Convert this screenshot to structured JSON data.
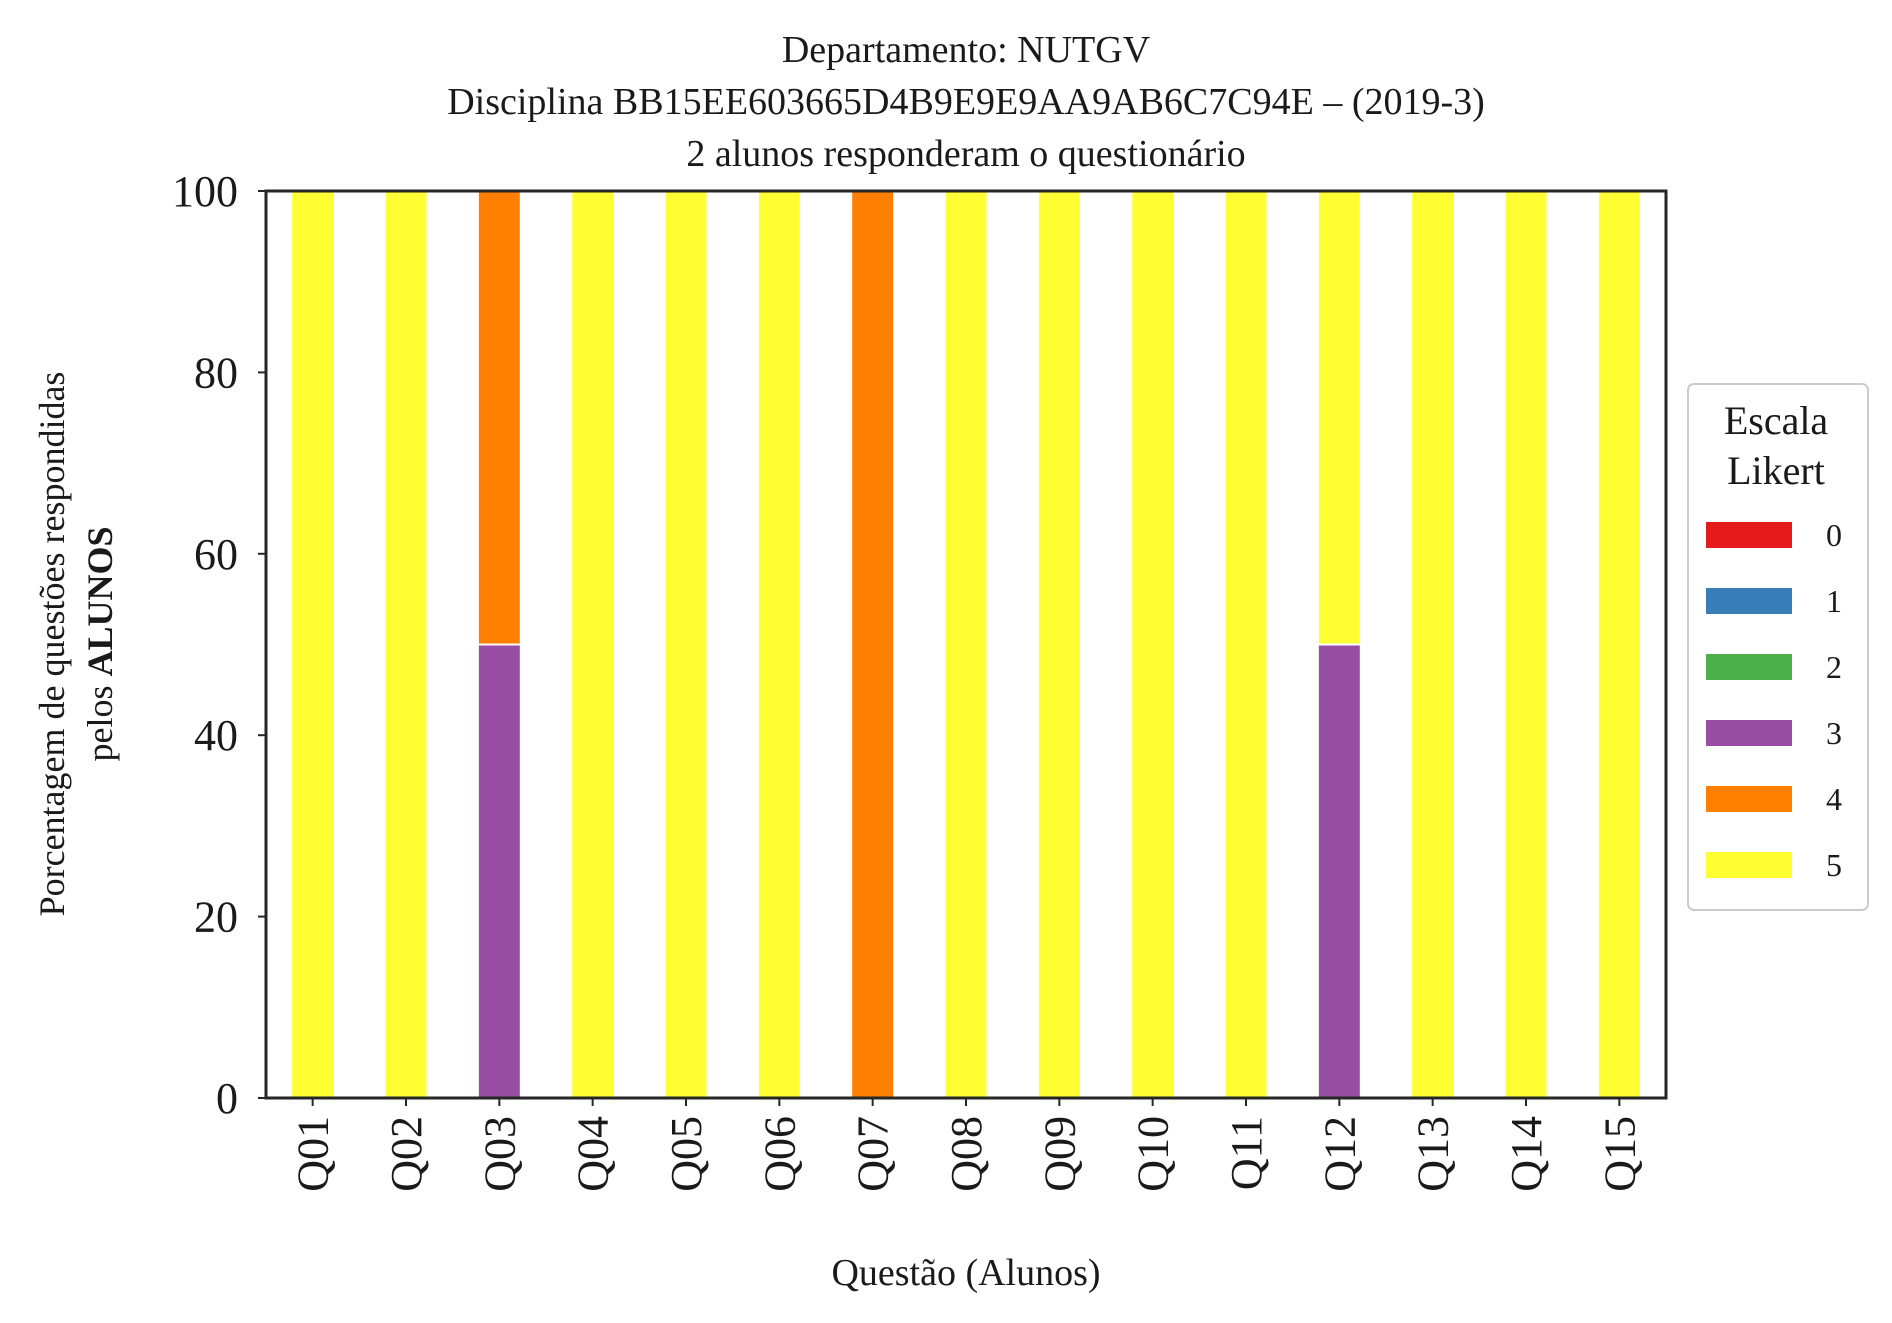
{
  "chart_data": {
    "type": "bar",
    "stacked": true,
    "title": [
      "Departamento: NUTGV",
      "Disciplina BB15EE603665D4B9E9E9AA9AB6C7C94E – (2019-3)",
      "2 alunos responderam o questionário"
    ],
    "xlabel": "Questão (Alunos)",
    "ylabel_line1": "Porcentagem de questões respondidas",
    "ylabel_line2_prefix": "pelos ",
    "ylabel_line2_bold": "ALUNOS",
    "ylim": [
      0,
      100
    ],
    "yticks": [
      "0",
      "20",
      "40",
      "60",
      "80",
      "100"
    ],
    "grid": false,
    "legend_position": "right",
    "legend_title": [
      "Escala",
      "Likert"
    ],
    "categories": [
      "Q01",
      "Q02",
      "Q03",
      "Q04",
      "Q05",
      "Q06",
      "Q07",
      "Q08",
      "Q09",
      "Q10",
      "Q11",
      "Q12",
      "Q13",
      "Q14",
      "Q15"
    ],
    "series": [
      {
        "name": "0",
        "color": "#e41a1c",
        "values": [
          0,
          0,
          0,
          0,
          0,
          0,
          0,
          0,
          0,
          0,
          0,
          0,
          0,
          0,
          0
        ]
      },
      {
        "name": "1",
        "color": "#377eb8",
        "values": [
          0,
          0,
          0,
          0,
          0,
          0,
          0,
          0,
          0,
          0,
          0,
          0,
          0,
          0,
          0
        ]
      },
      {
        "name": "2",
        "color": "#4daf4a",
        "values": [
          0,
          0,
          0,
          0,
          0,
          0,
          0,
          0,
          0,
          0,
          0,
          0,
          0,
          0,
          0
        ]
      },
      {
        "name": "3",
        "color": "#984ea3",
        "values": [
          0,
          0,
          50,
          0,
          0,
          0,
          0,
          0,
          0,
          0,
          0,
          50,
          0,
          0,
          0
        ]
      },
      {
        "name": "4",
        "color": "#ff7f00",
        "values": [
          0,
          0,
          50,
          0,
          0,
          0,
          100,
          0,
          0,
          0,
          0,
          0,
          0,
          0,
          0
        ]
      },
      {
        "name": "5",
        "color": "#ffff33",
        "values": [
          100,
          100,
          0,
          100,
          100,
          100,
          0,
          100,
          100,
          100,
          100,
          50,
          100,
          100,
          100
        ]
      }
    ]
  }
}
